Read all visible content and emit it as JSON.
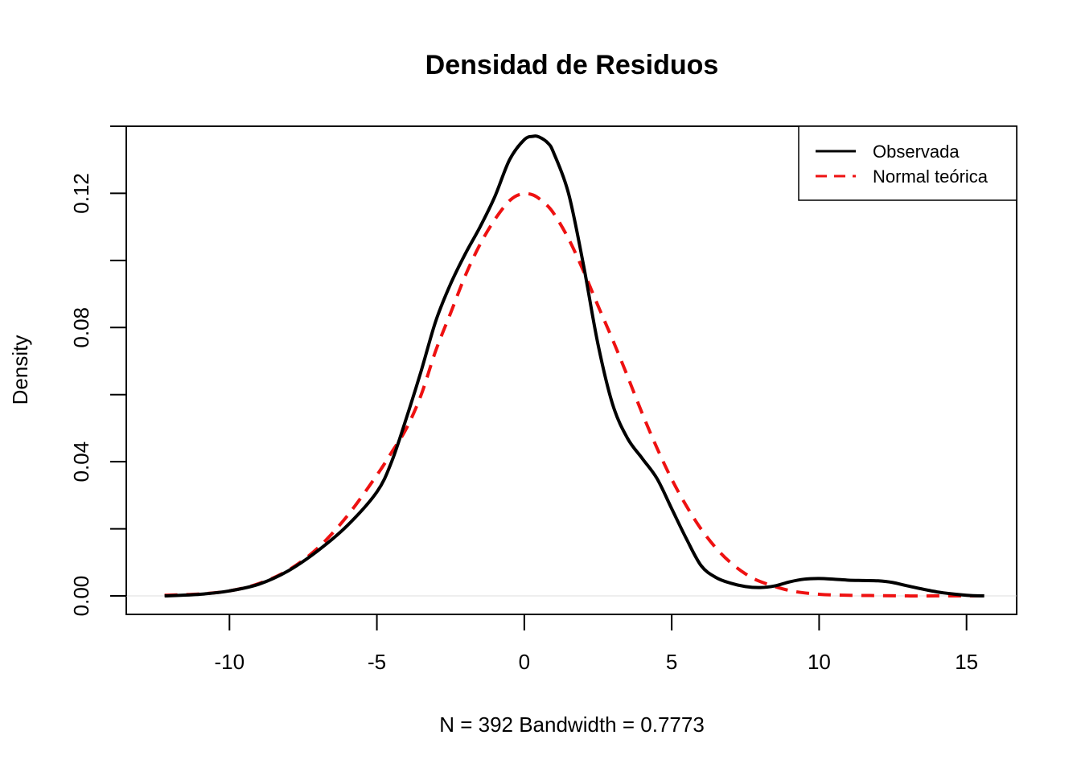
{
  "chart_data": {
    "type": "line",
    "title": "Densidad de Residuos",
    "xlabel": "N = 392   Bandwidth = 0.7773",
    "ylabel": "Density",
    "xlim": [
      -13.5,
      16.7
    ],
    "ylim": [
      -0.0055,
      0.14
    ],
    "x_ticks": [
      -10,
      -5,
      0,
      5,
      10,
      15
    ],
    "x_tick_labels": [
      "-10",
      "-5",
      "0",
      "5",
      "10",
      "15"
    ],
    "y_ticks": [
      0.0,
      0.02,
      0.04,
      0.06,
      0.08,
      0.1,
      0.12,
      0.14
    ],
    "y_tick_labels": [
      "0.00",
      "",
      "0.04",
      "",
      "0.08",
      "",
      "0.12",
      ""
    ],
    "grid": false,
    "legend_position": "top-right",
    "series": [
      {
        "name": "Observada",
        "color": "#000000",
        "dash": "solid",
        "x": [
          -12.2,
          -11,
          -10,
          -9,
          -8,
          -7,
          -6,
          -5,
          -4.5,
          -4,
          -3.5,
          -3,
          -2.5,
          -2,
          -1.5,
          -1,
          -0.5,
          0,
          0.3,
          0.5,
          0.8,
          1,
          1.5,
          2,
          2.5,
          3,
          3.5,
          4,
          4.5,
          5,
          5.5,
          6,
          6.5,
          7,
          7.5,
          8,
          8.5,
          9,
          9.5,
          10,
          10.5,
          11,
          11.5,
          12,
          12.5,
          13,
          14,
          15,
          15.6
        ],
        "y": [
          0.0,
          0.0005,
          0.0015,
          0.0035,
          0.0075,
          0.0135,
          0.021,
          0.031,
          0.04,
          0.053,
          0.067,
          0.082,
          0.093,
          0.102,
          0.11,
          0.119,
          0.13,
          0.136,
          0.137,
          0.1368,
          0.135,
          0.132,
          0.12,
          0.099,
          0.075,
          0.057,
          0.047,
          0.041,
          0.035,
          0.026,
          0.017,
          0.009,
          0.0055,
          0.0038,
          0.0028,
          0.0025,
          0.003,
          0.0042,
          0.005,
          0.0052,
          0.005,
          0.0047,
          0.0046,
          0.0045,
          0.004,
          0.003,
          0.0012,
          0.0002,
          0.0
        ]
      },
      {
        "name": "Normal teórica",
        "color": "#ee1111",
        "dash": "dashed",
        "x": [
          -12.2,
          -11,
          -10,
          -9,
          -8,
          -7,
          -6,
          -5,
          -4.5,
          -4,
          -3.5,
          -3,
          -2.5,
          -2,
          -1.5,
          -1,
          -0.5,
          -0.1,
          0.3,
          0.7,
          1,
          1.5,
          2,
          2.5,
          3,
          3.5,
          4,
          4.5,
          5,
          5.5,
          6,
          6.5,
          7,
          7.5,
          8,
          9,
          10,
          11,
          12,
          13,
          14,
          15,
          15.6
        ],
        "y": [
          0.0002,
          0.0006,
          0.0015,
          0.0037,
          0.0077,
          0.0143,
          0.0239,
          0.036,
          0.0428,
          0.0499,
          0.0599,
          0.0732,
          0.0843,
          0.0955,
          0.1048,
          0.1122,
          0.1178,
          0.1198,
          0.1195,
          0.117,
          0.114,
          0.1065,
          0.097,
          0.0865,
          0.0763,
          0.0655,
          0.0544,
          0.0441,
          0.0348,
          0.0268,
          0.0199,
          0.0143,
          0.0099,
          0.0066,
          0.0043,
          0.0016,
          0.0005,
          0.0002,
          0.0001,
          0.0,
          0.0,
          0.0,
          0.0
        ]
      }
    ]
  }
}
